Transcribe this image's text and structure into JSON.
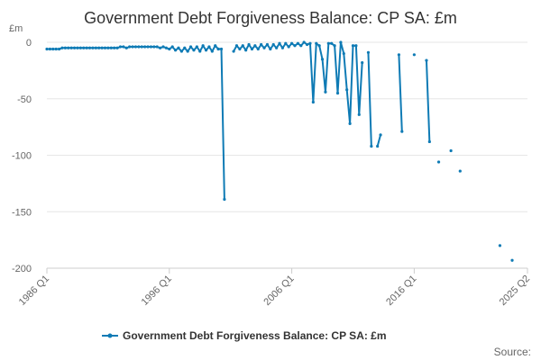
{
  "chart_data": {
    "type": "line",
    "title": "Government Debt Forgiveness Balance: CP SA: £m",
    "ylabel": "£m",
    "ylim": [
      -200,
      0
    ],
    "yticks": [
      0,
      -50,
      -100,
      -150,
      -200
    ],
    "xlim": [
      1986.0,
      2025.25
    ],
    "xticks": [
      {
        "label": "1986 Q1",
        "value": 1986.0
      },
      {
        "label": "1996 Q1",
        "value": 1996.0
      },
      {
        "label": "2006 Q1",
        "value": 2006.0
      },
      {
        "label": "2016 Q1",
        "value": 2016.0
      },
      {
        "label": "2025 Q2",
        "value": 2025.25
      }
    ],
    "grid": true,
    "legend": {
      "position": "bottom",
      "entries": [
        "Government Debt Forgiveness Balance: CP SA: £m"
      ]
    },
    "source_label": "Source:",
    "series": [
      {
        "name": "Government Debt Forgiveness Balance: CP SA: £m",
        "color": "#0f7bb5",
        "segments": [
          {
            "x": [
              1986.0,
              1986.25,
              1986.5,
              1986.75,
              1987.0,
              1987.25,
              1987.5,
              1987.75,
              1988.0,
              1988.25,
              1988.5,
              1988.75,
              1989.0,
              1989.25,
              1989.5,
              1989.75,
              1990.0,
              1990.25,
              1990.5,
              1990.75,
              1991.0,
              1991.25,
              1991.5,
              1991.75,
              1992.0,
              1992.25,
              1992.5,
              1992.75,
              1993.0,
              1993.25,
              1993.5,
              1993.75,
              1994.0,
              1994.25,
              1994.5,
              1994.75,
              1995.0,
              1995.25,
              1995.5,
              1995.75,
              1996.0,
              1996.25,
              1996.5,
              1996.75,
              1997.0,
              1997.25,
              1997.5,
              1997.75,
              1998.0,
              1998.25,
              1998.5,
              1998.75,
              1999.0,
              1999.25,
              1999.5,
              1999.75,
              2000.0
            ],
            "y": [
              -6,
              -6,
              -6,
              -6,
              -6,
              -5,
              -5,
              -5,
              -5,
              -5,
              -5,
              -5,
              -5,
              -5,
              -5,
              -5,
              -5,
              -5,
              -5,
              -5,
              -5,
              -5,
              -5,
              -5,
              -4,
              -4,
              -5,
              -4,
              -4,
              -4,
              -4,
              -4,
              -4,
              -4,
              -4,
              -4,
              -4,
              -5,
              -4,
              -5,
              -6,
              -4,
              -7,
              -5,
              -8,
              -5,
              -8,
              -4,
              -7,
              -4,
              -8,
              -3,
              -7,
              -4,
              -8,
              -3,
              -6
            ]
          },
          {
            "x": [
              2000.0,
              2000.25,
              2000.5
            ],
            "y": [
              -6,
              -6,
              -139
            ]
          },
          {
            "x": [
              2001.25,
              2001.5,
              2001.75,
              2002.0,
              2002.25,
              2002.5,
              2002.75,
              2003.0,
              2003.25,
              2003.5,
              2003.75,
              2004.0,
              2004.25,
              2004.5,
              2004.75,
              2005.0,
              2005.25,
              2005.5,
              2005.75,
              2006.0,
              2006.25,
              2006.5,
              2006.75,
              2007.0,
              2007.25,
              2007.5,
              2007.75,
              2008.0,
              2008.25,
              2008.5,
              2008.75,
              2009.0,
              2009.25,
              2009.5,
              2009.75,
              2010.0,
              2010.25,
              2010.5,
              2010.75,
              2011.0,
              2011.25,
              2011.5,
              2011.75,
              2012.0,
              2012.25,
              2012.5,
              2012.75,
              2013.0,
              2013.25
            ],
            "y": [
              -8,
              -3,
              -6,
              -3,
              -7,
              -2,
              -6,
              -3,
              -6,
              -2,
              -5,
              -2,
              -6,
              -2,
              -5,
              -1,
              -5,
              -1,
              -4,
              -1,
              -3,
              -1,
              -3,
              0,
              -2,
              -1,
              -53,
              -1,
              -3,
              -15,
              -44,
              -1,
              -1,
              -3,
              -45,
              0,
              -10,
              -42,
              -72,
              -3,
              -3,
              -64,
              -18,
              null,
              -9,
              -92,
              null,
              -92,
              -82
            ]
          },
          {
            "x": [
              2014.75,
              2015.0
            ],
            "y": [
              -11,
              -79
            ]
          },
          {
            "x": [
              2016.0
            ],
            "y": [
              -11
            ]
          },
          {
            "x": [
              2017.0,
              2017.25
            ],
            "y": [
              -16,
              -88
            ]
          },
          {
            "x": [
              2018.0
            ],
            "y": [
              -106
            ]
          },
          {
            "x": [
              2019.0
            ],
            "y": [
              -96
            ]
          },
          {
            "x": [
              2019.75
            ],
            "y": [
              -114
            ]
          },
          {
            "x": [
              2023.0
            ],
            "y": [
              -180
            ]
          },
          {
            "x": [
              2024.0
            ],
            "y": [
              -193
            ]
          }
        ]
      }
    ]
  }
}
